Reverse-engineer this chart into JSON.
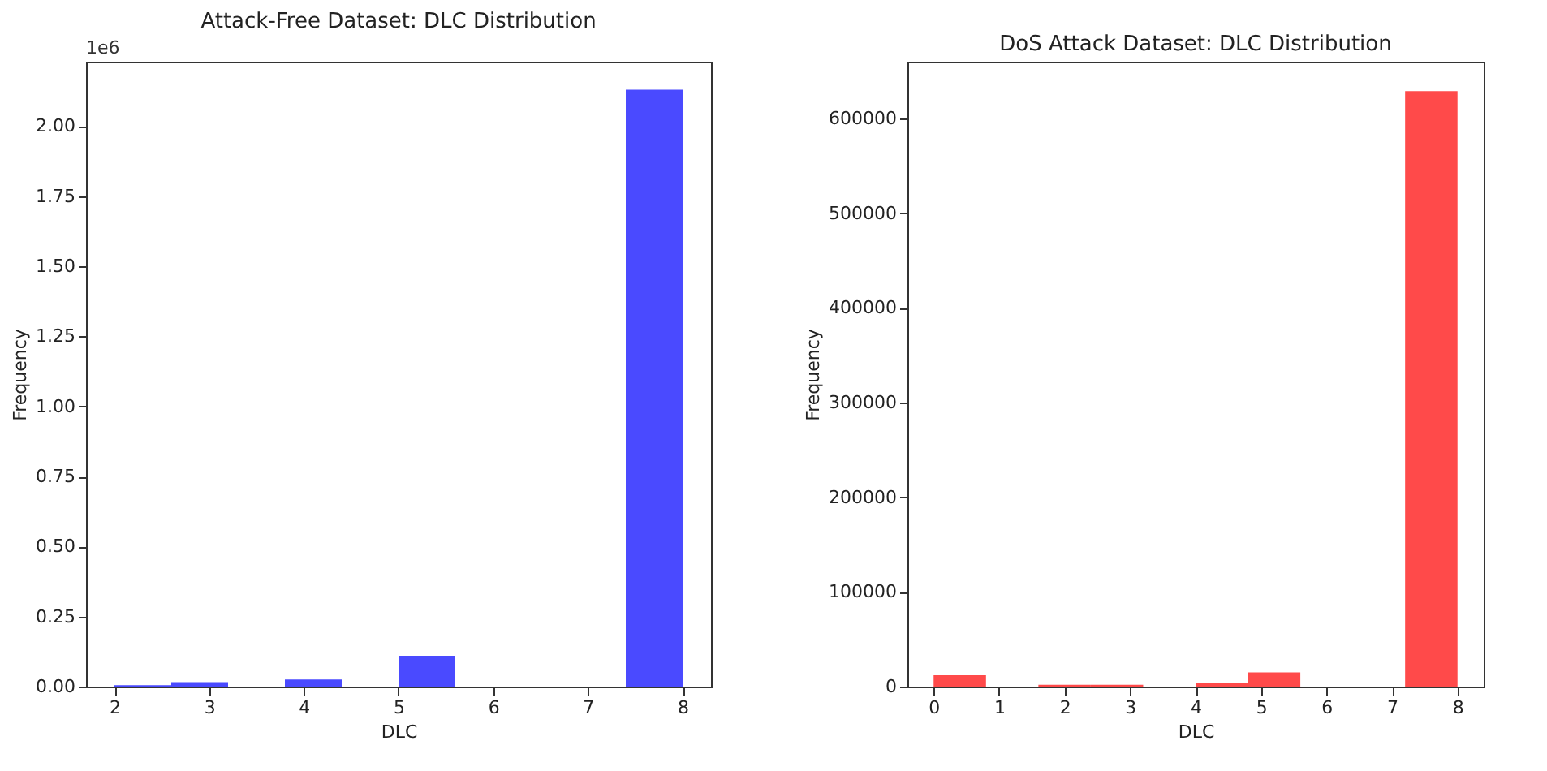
{
  "chart_data": [
    {
      "type": "histogram",
      "title": "Attack-Free Dataset: DLC Distribution",
      "xlabel": "DLC",
      "ylabel": "Frequency",
      "annotations": [
        "1e6"
      ],
      "color": "#4a4aff",
      "bins": [
        2,
        2.6,
        3.2,
        3.8,
        4.4,
        5.0,
        5.6,
        6.2,
        6.8,
        7.4,
        8
      ],
      "values": [
        0.005,
        0.016,
        0,
        0.025,
        0,
        0.11,
        0,
        0,
        0,
        2.13
      ],
      "xlim": [
        1.7,
        8.3
      ],
      "xticks": [
        2,
        3,
        4,
        5,
        6,
        7,
        8
      ],
      "ylim": [
        0,
        2.23
      ],
      "yticks": [
        {
          "value": 0,
          "label": "0.00"
        },
        {
          "value": 0.25,
          "label": "0.25"
        },
        {
          "value": 0.5,
          "label": "0.50"
        },
        {
          "value": 0.75,
          "label": "0.75"
        },
        {
          "value": 1,
          "label": "1.00"
        },
        {
          "value": 1.25,
          "label": "1.25"
        },
        {
          "value": 1.5,
          "label": "1.50"
        },
        {
          "value": 1.75,
          "label": "1.75"
        },
        {
          "value": 2,
          "label": "2.00"
        }
      ],
      "grid": false
    },
    {
      "type": "histogram",
      "title": "DoS Attack Dataset: DLC Distribution",
      "xlabel": "DLC",
      "ylabel": "Frequency",
      "color": "#ff4a4a",
      "bins": [
        0,
        0.8,
        1.6,
        2.4,
        3.2,
        4.0,
        4.8,
        5.6,
        6.4,
        7.2,
        8
      ],
      "values": [
        12000,
        0,
        2000,
        2000,
        0,
        4000,
        15000,
        0,
        0,
        629000
      ],
      "xlim": [
        -0.4,
        8.4
      ],
      "xticks": [
        0,
        1,
        2,
        3,
        4,
        5,
        6,
        7,
        8
      ],
      "ylim": [
        0,
        660000
      ],
      "yticks": [
        0,
        100000,
        200000,
        300000,
        400000,
        500000,
        600000
      ],
      "grid": false
    }
  ]
}
